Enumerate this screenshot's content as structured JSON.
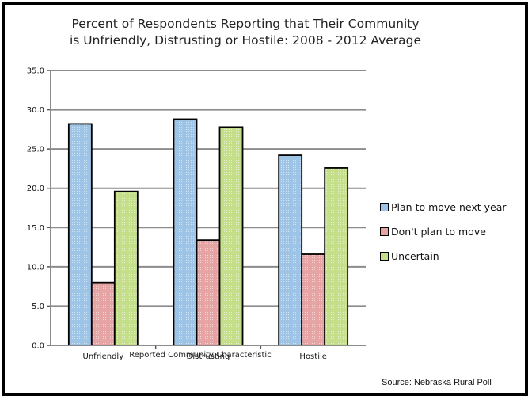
{
  "chart_data": {
    "type": "bar",
    "title_lines": [
      "Percent of Respondents Reporting that Their Community",
      "is Unfriendly, Distrusting or Hostile: 2008 - 2012 Average"
    ],
    "categories": [
      "Unfriendly",
      "Distrusting",
      "Hostile"
    ],
    "series": [
      {
        "name": "Plan to move next year",
        "values": [
          28.2,
          28.8,
          24.2
        ],
        "color": "#9DC3E6"
      },
      {
        "name": "Don't plan to move",
        "values": [
          8.0,
          13.4,
          11.6
        ],
        "color": "#E6A3A3"
      },
      {
        "name": "Uncertain",
        "values": [
          19.6,
          27.8,
          22.6
        ],
        "color": "#C4DE8A"
      }
    ],
    "ylim": [
      0,
      35
    ],
    "yticks": [
      "0.0",
      "5.0",
      "10.0",
      "15.0",
      "20.0",
      "25.0",
      "30.0",
      "35.0"
    ],
    "xlabel": "Reported Community Characteristic",
    "ylabel": "",
    "grid": true,
    "legend_position": "right"
  },
  "source": "Source: Nebraska Rural Poll"
}
